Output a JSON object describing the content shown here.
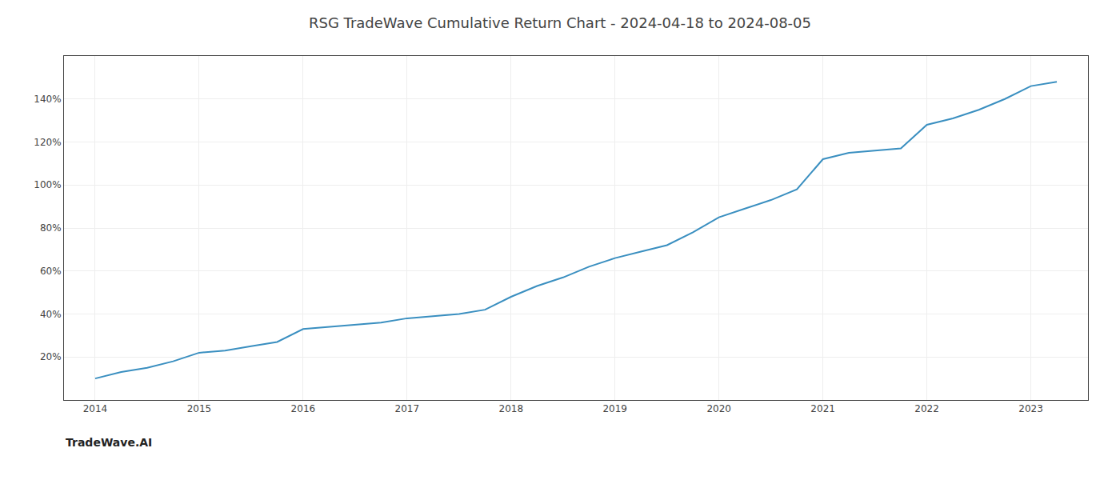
{
  "chart_data": {
    "type": "line",
    "title": "RSG TradeWave Cumulative Return Chart - 2024-04-18 to 2024-08-05",
    "annotations": [
      "TradeWave.AI"
    ],
    "x": [
      2014.0,
      2014.25,
      2014.5,
      2014.75,
      2015.0,
      2015.25,
      2015.5,
      2015.75,
      2016.0,
      2016.25,
      2016.5,
      2016.75,
      2017.0,
      2017.25,
      2017.5,
      2017.75,
      2018.0,
      2018.25,
      2018.5,
      2018.75,
      2019.0,
      2019.25,
      2019.5,
      2019.75,
      2020.0,
      2020.25,
      2020.5,
      2020.75,
      2021.0,
      2021.25,
      2021.5,
      2021.75,
      2022.0,
      2022.25,
      2022.5,
      2022.75,
      2023.0,
      2023.25
    ],
    "values": [
      10,
      13,
      15,
      18,
      22,
      23,
      25,
      27,
      33,
      34,
      35,
      36,
      38,
      39,
      40,
      42,
      48,
      53,
      57,
      62,
      66,
      69,
      72,
      78,
      85,
      89,
      93,
      98,
      112,
      115,
      116,
      117,
      128,
      131,
      135,
      140,
      146,
      148
    ],
    "color": "#3a8fc0",
    "xlim": [
      2013.7,
      2023.55
    ],
    "ylim": [
      0,
      160
    ],
    "xticks": [
      2014,
      2015,
      2016,
      2017,
      2018,
      2019,
      2020,
      2021,
      2022,
      2023
    ],
    "yticks": [
      {
        "value": 20,
        "label": "20%"
      },
      {
        "value": 40,
        "label": "40%"
      },
      {
        "value": 60,
        "label": "60%"
      },
      {
        "value": 80,
        "label": "80%"
      },
      {
        "value": 100,
        "label": "100%"
      },
      {
        "value": 120,
        "label": "120%"
      },
      {
        "value": 140,
        "label": "140%"
      }
    ],
    "grid": true
  }
}
